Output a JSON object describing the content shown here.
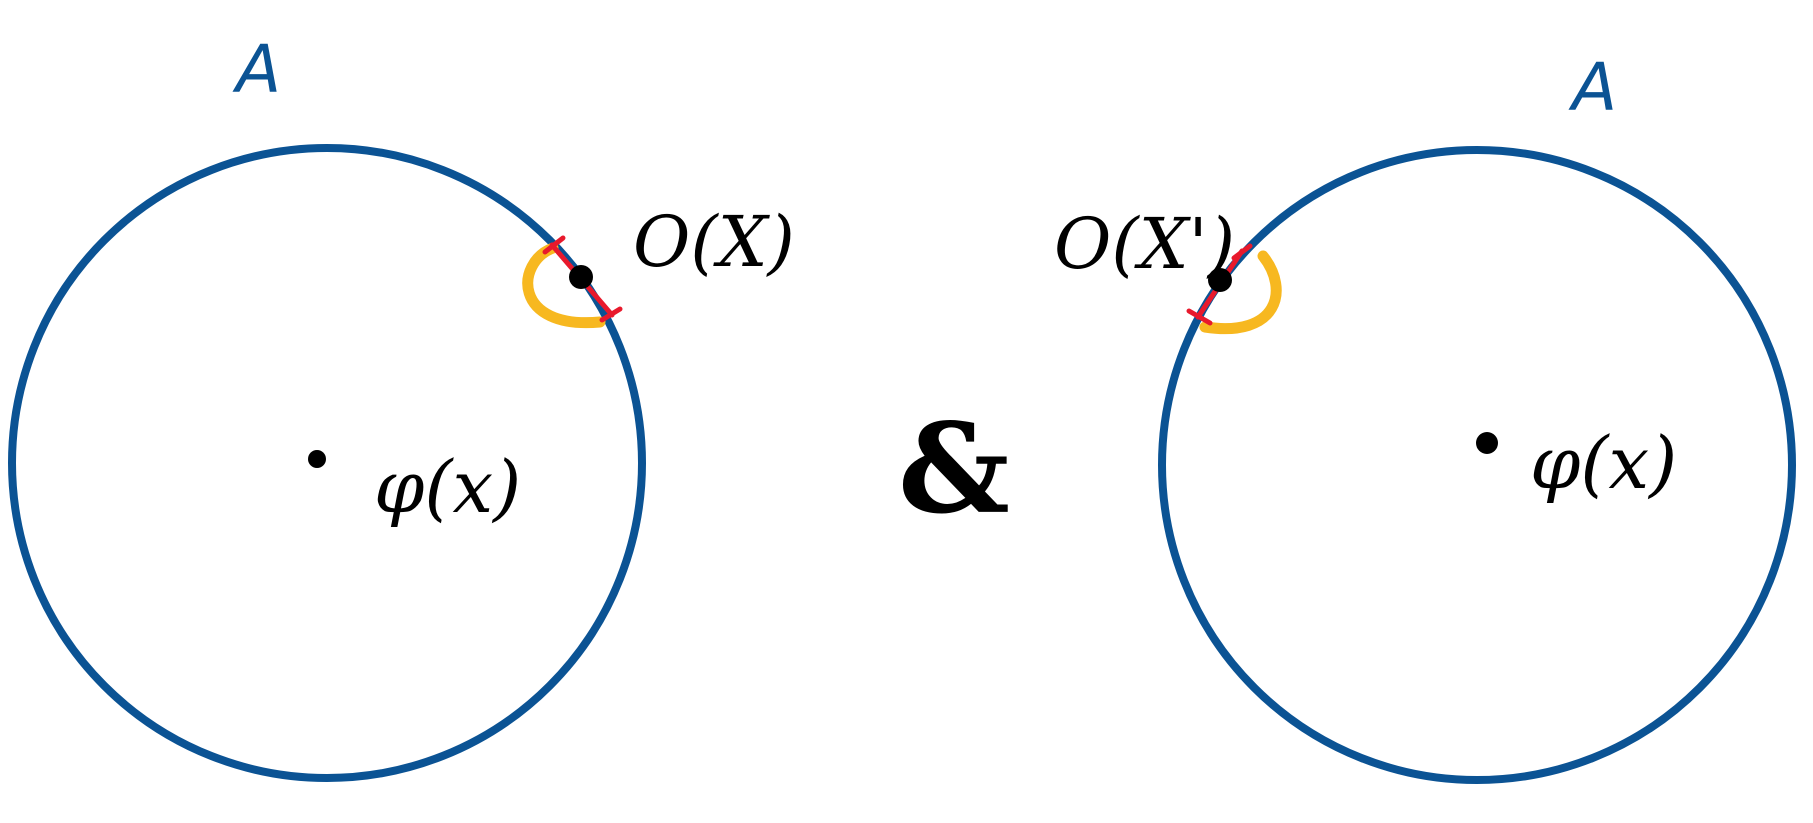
{
  "colors": {
    "boundary": "#0b5394",
    "interval": "#e8192c",
    "arc": "#f7b820",
    "ink": "#000000"
  },
  "left_panel": {
    "region_label": "A",
    "operator_label": "O(X)",
    "field_label": "φ(x)"
  },
  "conjunction": "&",
  "right_panel": {
    "region_label": "A",
    "operator_label": "O(X')",
    "field_label": "φ(x)"
  }
}
